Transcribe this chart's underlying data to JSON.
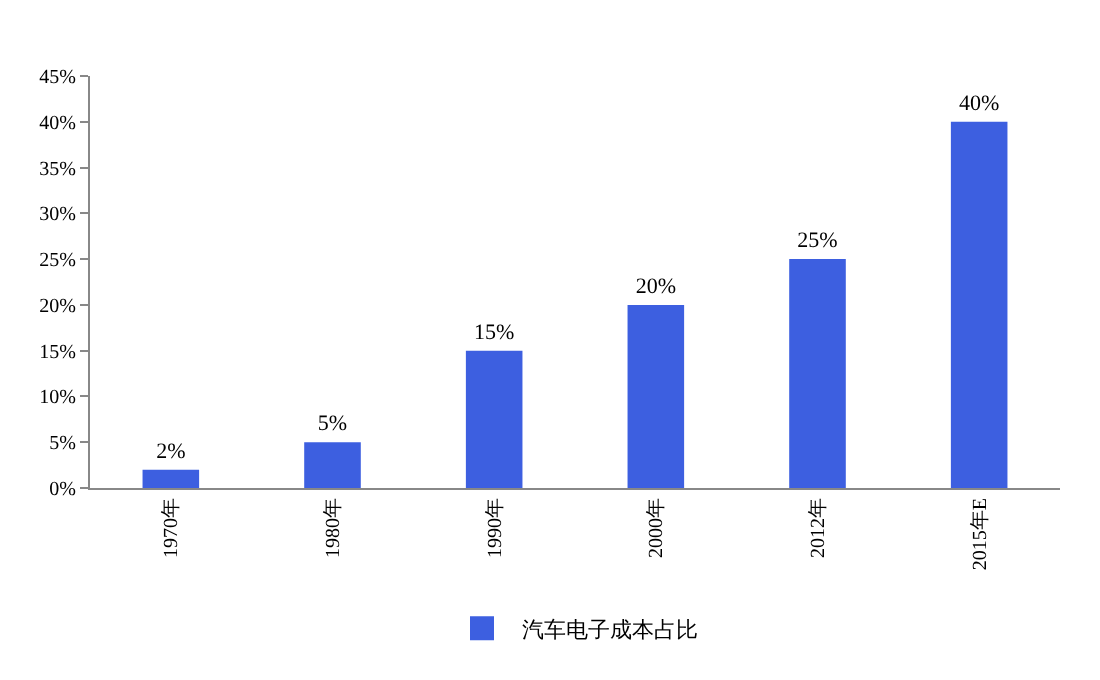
{
  "chart_data": {
    "type": "bar",
    "categories": [
      "1970年",
      "1980年",
      "1990年",
      "2000年",
      "2012年",
      "2015年E"
    ],
    "series": [
      {
        "name": "汽车电子成本占比",
        "color": "#3d5fe0",
        "values": [
          2,
          5,
          15,
          20,
          25,
          40
        ],
        "value_labels": [
          "2%",
          "5%",
          "15%",
          "20%",
          "25%",
          "40%"
        ]
      }
    ],
    "ylim": [
      0,
      45
    ],
    "yticks": [
      {
        "value": 0,
        "label": "0%"
      },
      {
        "value": 5,
        "label": "5%"
      },
      {
        "value": 10,
        "label": "10%"
      },
      {
        "value": 15,
        "label": "15%"
      },
      {
        "value": 20,
        "label": "20%"
      },
      {
        "value": 25,
        "label": "25%"
      },
      {
        "value": 30,
        "label": "30%"
      },
      {
        "value": 35,
        "label": "35%"
      },
      {
        "value": 40,
        "label": "40%"
      },
      {
        "value": 45,
        "label": "45%"
      }
    ],
    "grid": false,
    "legend": "bottom"
  }
}
